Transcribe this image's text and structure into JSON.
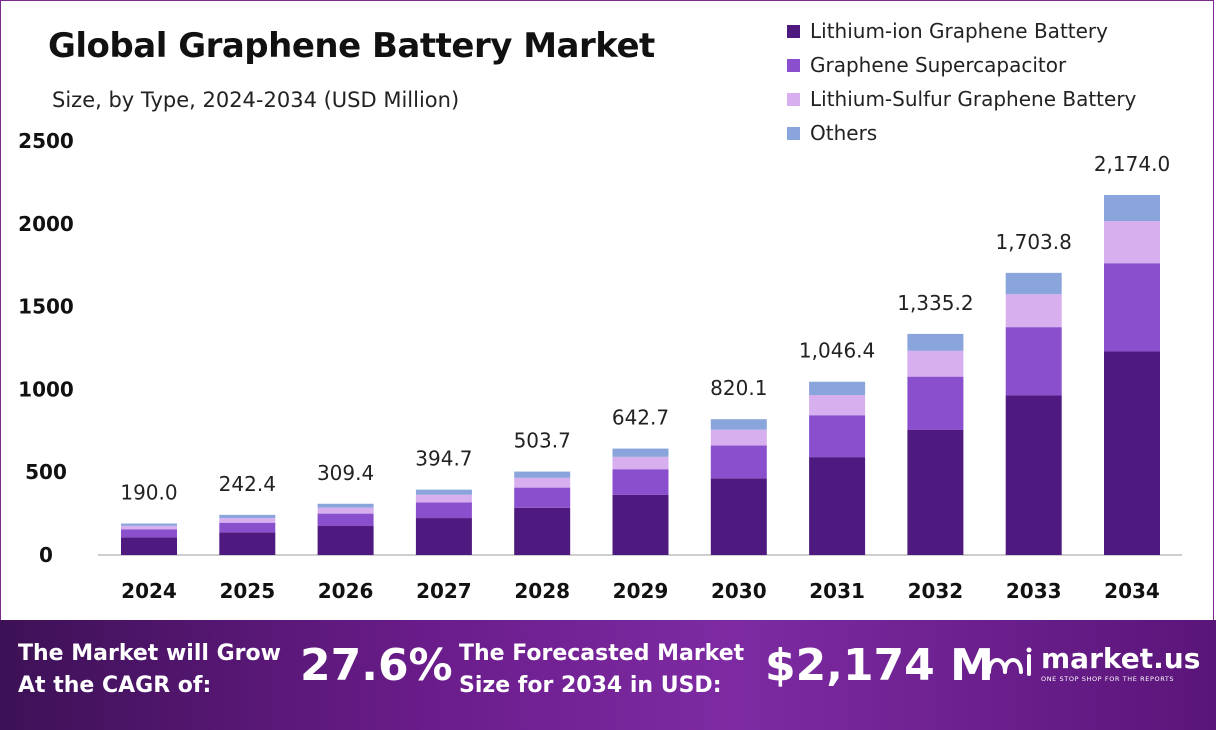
{
  "header": {
    "title": "Global Graphene Battery Market",
    "subtitle": "Size, by Type, 2024-2034 (USD Million)"
  },
  "legend": [
    {
      "label": "Lithium-ion Graphene Battery",
      "color": "#4e1a7f"
    },
    {
      "label": "Graphene Supercapacitor",
      "color": "#8a4fcc"
    },
    {
      "label": "Lithium-Sulfur Graphene Battery",
      "color": "#d7aeee"
    },
    {
      "label": "Others",
      "color": "#8aa4dc"
    }
  ],
  "chart_data": {
    "type": "bar",
    "stacked": true,
    "categories": [
      "2024",
      "2025",
      "2026",
      "2027",
      "2028",
      "2029",
      "2030",
      "2031",
      "2032",
      "2033",
      "2034"
    ],
    "series": [
      {
        "name": "Lithium-ion Graphene Battery",
        "color": "#4e1a7f",
        "values": [
          107,
          137,
          175,
          223,
          285,
          363,
          463,
          591,
          755,
          963,
          1229
        ]
      },
      {
        "name": "Graphene Supercapacitor",
        "color": "#8a4fcc",
        "values": [
          47,
          58,
          75,
          95,
          122,
          155,
          198,
          253,
          322,
          413,
          533
        ]
      },
      {
        "name": "Lithium-Sulfur Graphene Battery",
        "color": "#d7aeee",
        "values": [
          22,
          28,
          36,
          46,
          59,
          75,
          96,
          122,
          156,
          199,
          254
        ]
      },
      {
        "name": "Others",
        "color": "#8aa4dc",
        "values": [
          14,
          19.4,
          23.4,
          30.7,
          37.7,
          49.7,
          63.1,
          80.4,
          102.2,
          128.8,
          158
        ]
      }
    ],
    "totals": [
      190.0,
      242.4,
      309.4,
      394.7,
      503.7,
      642.7,
      820.1,
      1046.4,
      1335.2,
      1703.8,
      2174.0
    ],
    "total_labels": [
      "190.0",
      "242.4",
      "309.4",
      "394.7",
      "503.7",
      "642.7",
      "820.1",
      "1,046.4",
      "1,335.2",
      "1,703.8",
      "2,174.0"
    ],
    "y_ticks": [
      "0",
      "500",
      "1000",
      "1500",
      "2000",
      "2500"
    ],
    "ylim": [
      0,
      2500
    ],
    "grid": false,
    "legend_position": "top-right"
  },
  "footer": {
    "cagr_line1": "The Market will Grow",
    "cagr_line2": "At the CAGR of:",
    "cagr_value": "27.6%",
    "forecast_line1": "The Forecasted Market",
    "forecast_line2": "Size for 2034 in USD:",
    "forecast_value": "$2,174 M",
    "brand_name": "market.us",
    "brand_tagline": "ONE STOP SHOP FOR THE REPORTS"
  }
}
